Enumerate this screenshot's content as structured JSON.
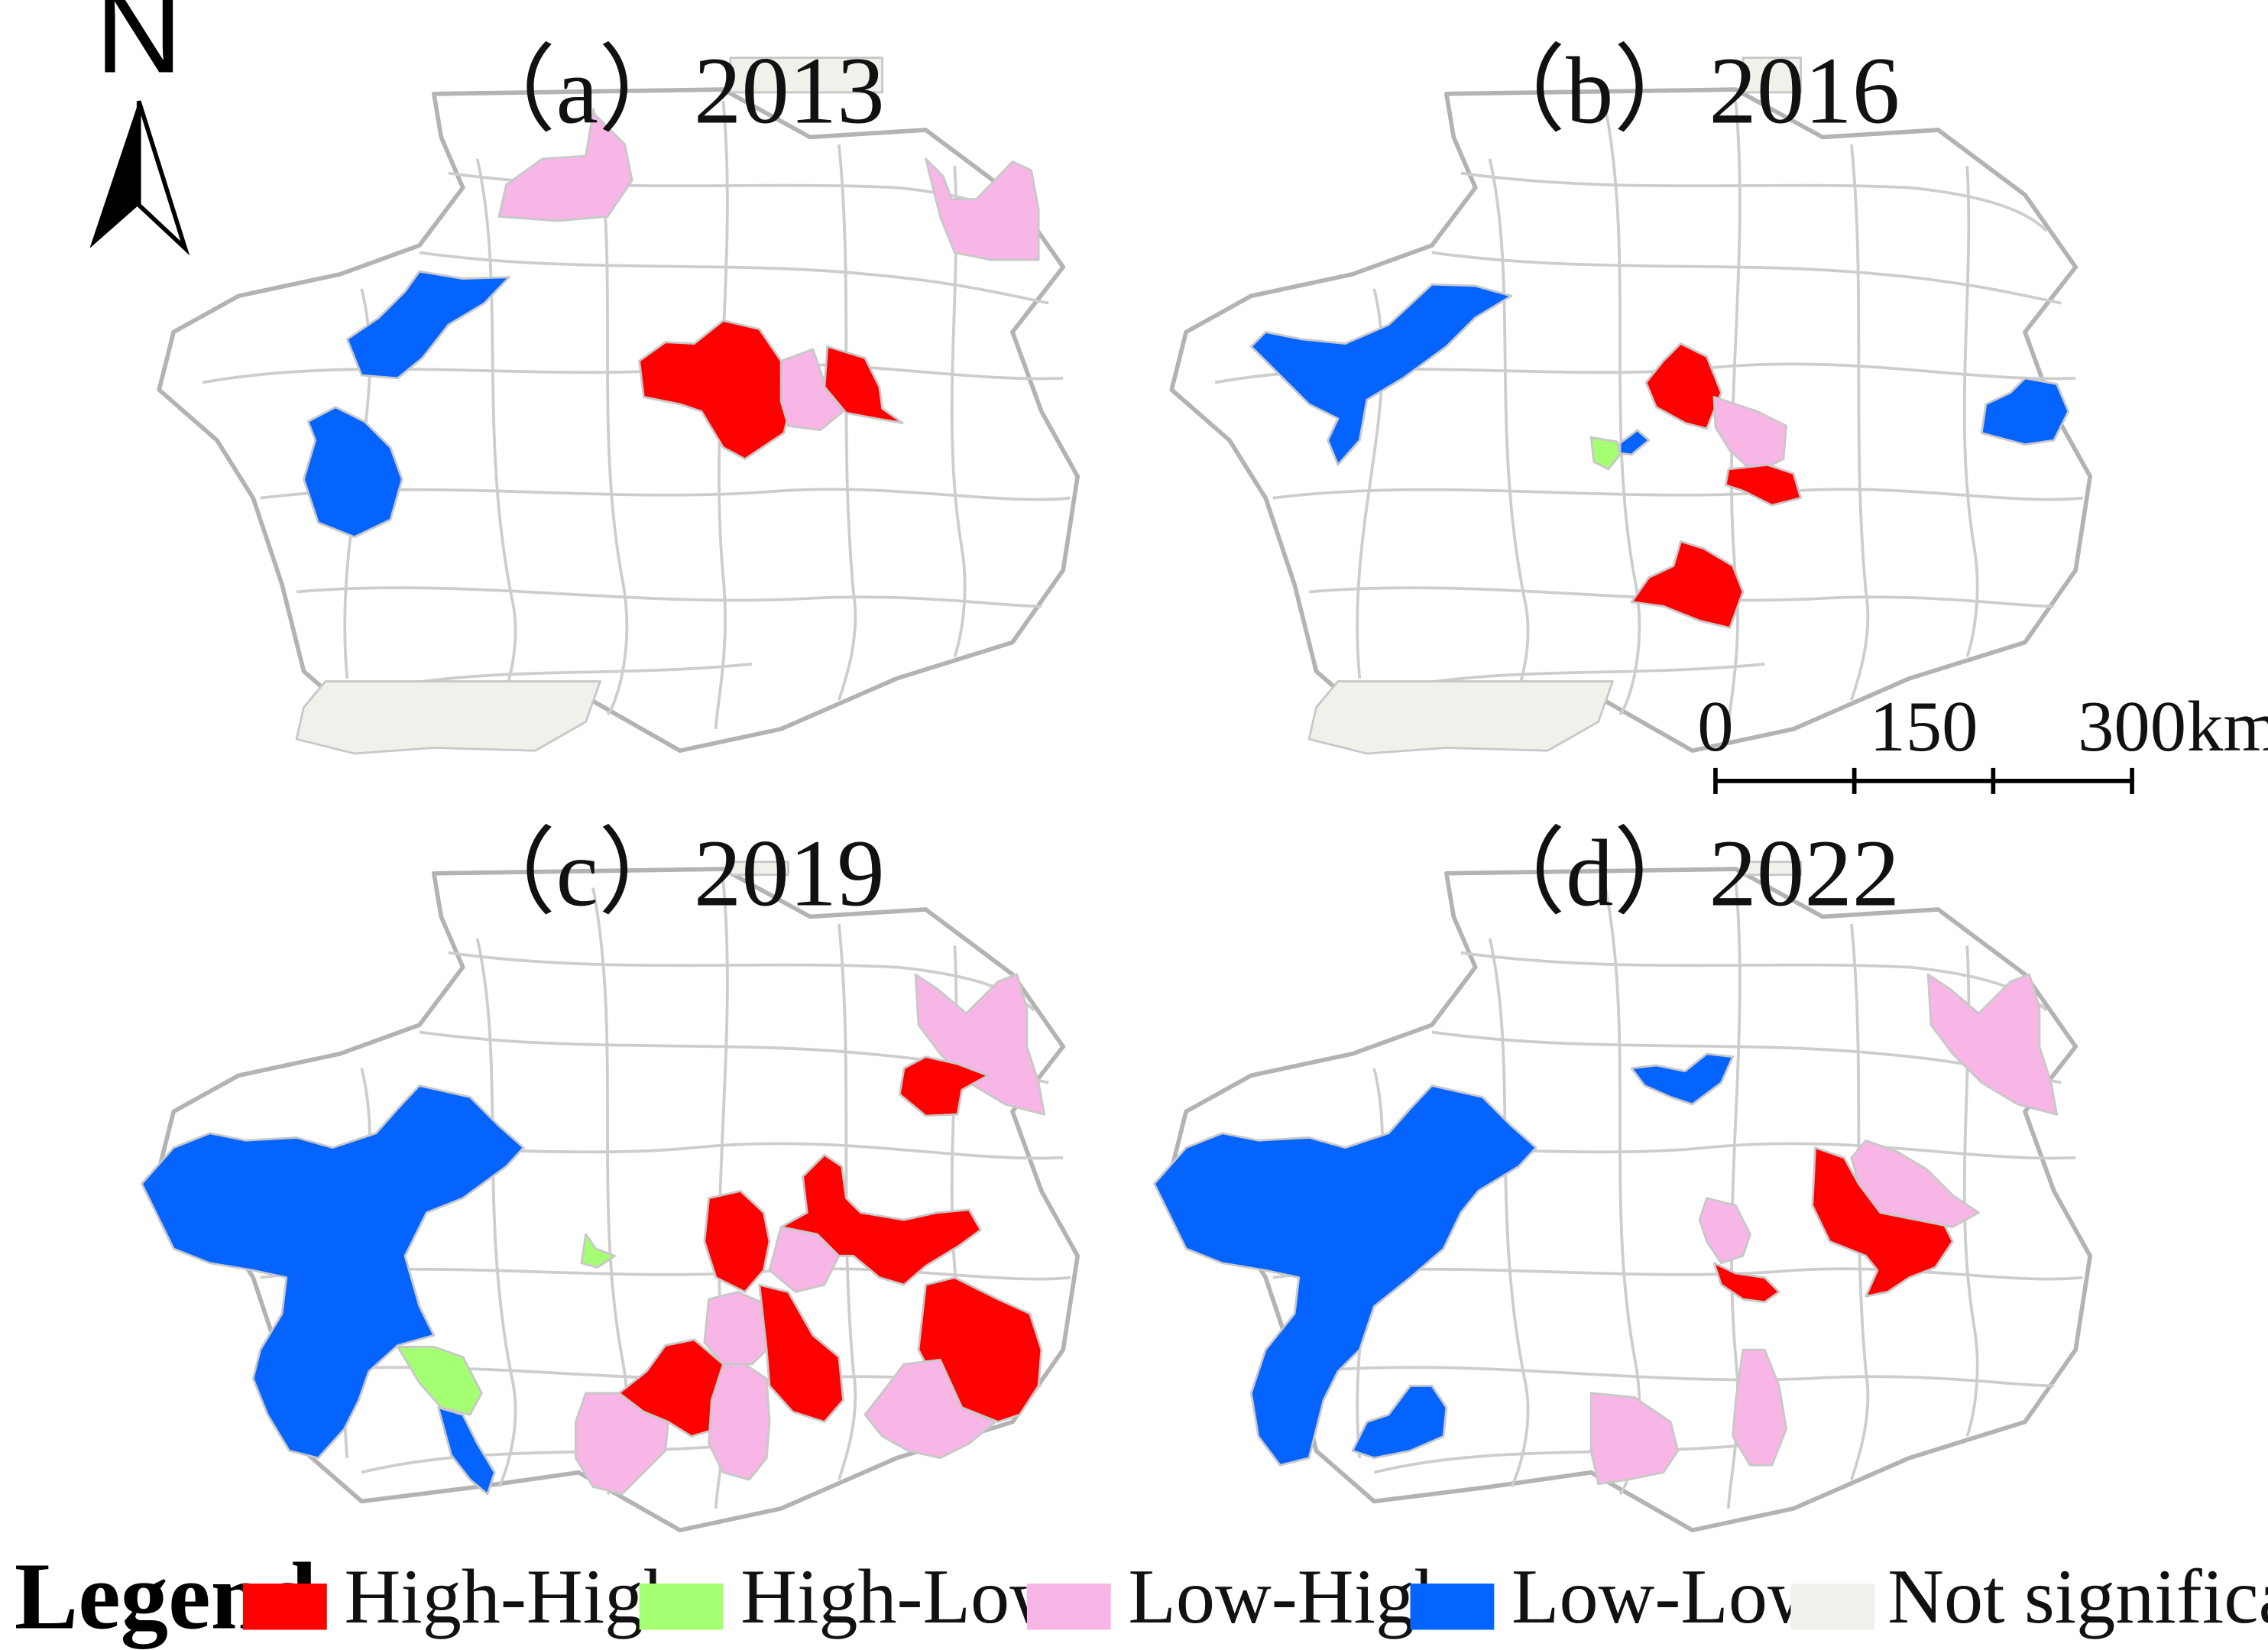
{
  "figure": {
    "north_label": "N",
    "legend_title": "Legend"
  },
  "colors": {
    "high_high": "#ff0000",
    "high_low": "#a4ff73",
    "low_high": "#f7b6e6",
    "low_low": "#0564ff",
    "not_significant": "#f1f1ec",
    "boundary": "#b3b3b3"
  },
  "legend": {
    "items": [
      {
        "key": "high_high",
        "label": "High-High"
      },
      {
        "key": "high_low",
        "label": "High-Low"
      },
      {
        "key": "low_high",
        "label": "Low-High"
      },
      {
        "key": "low_low",
        "label": "Low-Low"
      },
      {
        "key": "not_significant",
        "label": "Not significant"
      }
    ]
  },
  "scale_bar": {
    "labels": [
      "0",
      "150",
      "300"
    ],
    "unit": "km"
  },
  "panels": [
    {
      "id": "a",
      "title": "（a）2013"
    },
    {
      "id": "b",
      "title": "（b）2016"
    },
    {
      "id": "c",
      "title": "（c）2019"
    },
    {
      "id": "d",
      "title": "（d）2022"
    }
  ]
}
